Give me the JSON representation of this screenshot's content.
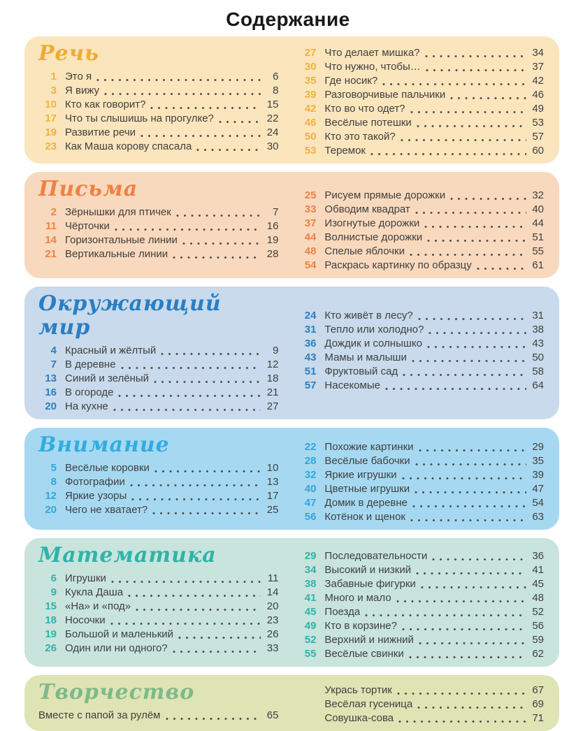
{
  "page": {
    "title": "Содержание"
  },
  "sections": [
    {
      "key": "rech",
      "title": "Речь",
      "colors": {
        "bg": "#FAE5BC",
        "accent": "#EEAC35",
        "num": "#F2B23D"
      },
      "left": [
        {
          "num": "1",
          "title": "Это я",
          "page": "6"
        },
        {
          "num": "3",
          "title": "Я вижу",
          "page": "8"
        },
        {
          "num": "10",
          "title": "Кто как говорит?",
          "page": "15"
        },
        {
          "num": "17",
          "title": "Что ты слышишь на прогулке?",
          "page": "22"
        },
        {
          "num": "19",
          "title": "Развитие речи",
          "page": "24"
        },
        {
          "num": "23",
          "title": "Как Маша корову спасала",
          "page": "30"
        }
      ],
      "right": [
        {
          "num": "27",
          "title": "Что делает мишка?",
          "page": "34"
        },
        {
          "num": "30",
          "title": "Что нужно, чтобы…",
          "page": "37"
        },
        {
          "num": "35",
          "title": "Где носик?",
          "page": "42"
        },
        {
          "num": "39",
          "title": "Разговорчивые пальчики",
          "page": "46"
        },
        {
          "num": "42",
          "title": "Кто во что одет?",
          "page": "49"
        },
        {
          "num": "46",
          "title": "Весёлые потешки",
          "page": "53"
        },
        {
          "num": "50",
          "title": "Кто это такой?",
          "page": "57"
        },
        {
          "num": "53",
          "title": "Теремок",
          "page": "60"
        }
      ]
    },
    {
      "key": "pisma",
      "title": "Письма",
      "colors": {
        "bg": "#F9D9BD",
        "accent": "#EF8142",
        "num": "#EF8142"
      },
      "left": [
        {
          "num": "2",
          "title": "Зёрнышки для птичек",
          "page": "7"
        },
        {
          "num": "11",
          "title": "Чёрточки",
          "page": "16"
        },
        {
          "num": "14",
          "title": "Горизонтальные линии",
          "page": "19"
        },
        {
          "num": "21",
          "title": "Вертикальные линии",
          "page": "28"
        }
      ],
      "right": [
        {
          "num": "25",
          "title": "Рисуем прямые дорожки",
          "page": "32"
        },
        {
          "num": "33",
          "title": "Обводим квадрат",
          "page": "40"
        },
        {
          "num": "37",
          "title": "Изогнутые дорожки",
          "page": "44"
        },
        {
          "num": "44",
          "title": "Волнистые дорожки",
          "page": "51"
        },
        {
          "num": "48",
          "title": "Спелые яблочки",
          "page": "55"
        },
        {
          "num": "54",
          "title": "Раскрась картинку по образцу",
          "page": "61"
        }
      ]
    },
    {
      "key": "okr",
      "title": "Окружающий мир",
      "colors": {
        "bg": "#C8DAEB",
        "accent": "#2B7EC2",
        "num": "#2B7EC2"
      },
      "left": [
        {
          "num": "4",
          "title": "Красный и жёлтый",
          "page": "9"
        },
        {
          "num": "7",
          "title": "В деревне",
          "page": "12"
        },
        {
          "num": "13",
          "title": "Синий и зелёный",
          "page": "18"
        },
        {
          "num": "16",
          "title": "В огороде",
          "page": "21"
        },
        {
          "num": "20",
          "title": "На кухне",
          "page": "27"
        }
      ],
      "right": [
        {
          "num": "24",
          "title": "Кто живёт в лесу?",
          "page": "31"
        },
        {
          "num": "31",
          "title": "Тепло или холодно?",
          "page": "38"
        },
        {
          "num": "36",
          "title": "Дождик и солнышко",
          "page": "43"
        },
        {
          "num": "43",
          "title": "Мамы и малыши",
          "page": "50"
        },
        {
          "num": "51",
          "title": "Фруктовый сад",
          "page": "58"
        },
        {
          "num": "57",
          "title": "Насекомые",
          "page": "64"
        }
      ]
    },
    {
      "key": "vnim",
      "title": "Внимание",
      "colors": {
        "bg": "#A6D9F1",
        "accent": "#32ACE0",
        "num": "#2FA6DE"
      },
      "left": [
        {
          "num": "5",
          "title": "Весёлые коровки",
          "page": "10"
        },
        {
          "num": "8",
          "title": "Фотографии",
          "page": "13"
        },
        {
          "num": "12",
          "title": "Яркие узоры",
          "page": "17"
        },
        {
          "num": "20",
          "title": "Чего не хватает?",
          "page": "25"
        }
      ],
      "right": [
        {
          "num": "22",
          "title": "Похожие картинки",
          "page": "29"
        },
        {
          "num": "28",
          "title": "Весёлые бабочки",
          "page": "35"
        },
        {
          "num": "32",
          "title": "Яркие игрушки",
          "page": "39"
        },
        {
          "num": "40",
          "title": "Цветные игрушки",
          "page": "47"
        },
        {
          "num": "47",
          "title": "Домик в деревне",
          "page": "54"
        },
        {
          "num": "56",
          "title": "Котёнок и щенок",
          "page": "63"
        }
      ]
    },
    {
      "key": "matem",
      "title": "Математика",
      "colors": {
        "bg": "#C8E4DD",
        "accent": "#2FB4A9",
        "num": "#2FB4A9"
      },
      "left": [
        {
          "num": "6",
          "title": "Игрушки",
          "page": "11"
        },
        {
          "num": "9",
          "title": "Кукла Даша",
          "page": "14"
        },
        {
          "num": "15",
          "title": "«На» и «под»",
          "page": "20"
        },
        {
          "num": "18",
          "title": "Носочки",
          "page": "23"
        },
        {
          "num": "19",
          "title": "Большой и маленький",
          "page": "26"
        },
        {
          "num": "26",
          "title": "Один или ни одного?",
          "page": "33"
        }
      ],
      "right": [
        {
          "num": "29",
          "title": "Последовательности",
          "page": "36"
        },
        {
          "num": "34",
          "title": "Высокий и низкий",
          "page": "41"
        },
        {
          "num": "38",
          "title": "Забавные фигурки",
          "page": "45"
        },
        {
          "num": "41",
          "title": "Много и мало",
          "page": "48"
        },
        {
          "num": "45",
          "title": "Поезда",
          "page": "52"
        },
        {
          "num": "49",
          "title": "Кто в корзине?",
          "page": "56"
        },
        {
          "num": "52",
          "title": "Верхний и нижний",
          "page": "59"
        },
        {
          "num": "55",
          "title": "Весёлые свинки",
          "page": "62"
        }
      ]
    },
    {
      "key": "tvor",
      "title": "Творчество",
      "colors": {
        "bg": "#DFE4B5",
        "accent": "#7FB98B",
        "num": "#7FB98B"
      },
      "left": [
        {
          "num": "",
          "title": "Вместе с папой за рулём",
          "page": "65"
        }
      ],
      "right": [
        {
          "num": "",
          "title": "Укрась тортик",
          "page": "67"
        },
        {
          "num": "",
          "title": "Весёлая гусеница",
          "page": "69"
        },
        {
          "num": "",
          "title": "Совушка-сова",
          "page": "71"
        }
      ]
    }
  ]
}
